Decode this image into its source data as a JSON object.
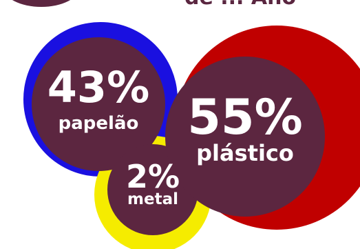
{
  "chart_data": {
    "type": "bubble",
    "title": "de ... Ano",
    "series": [
      {
        "category": "papelão",
        "value": 43,
        "display": "43%",
        "ring_color": "#1a10e0"
      },
      {
        "category": "plástico",
        "value": 55,
        "display": "55%",
        "ring_color": "#c00000"
      },
      {
        "category": "metal",
        "value": 2,
        "display": "2%",
        "ring_color": "#f5ec00"
      }
    ],
    "bubble_color": "#5c2640",
    "value_color": "#ffffff"
  }
}
